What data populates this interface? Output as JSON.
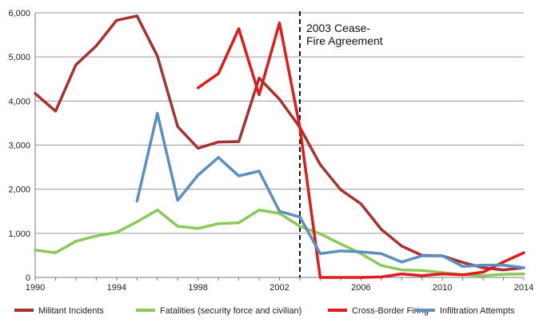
{
  "chart_data": {
    "type": "line",
    "title": "",
    "xlabel": "",
    "ylabel": "",
    "xlim": [
      1990,
      2014
    ],
    "ylim": [
      0,
      6000
    ],
    "grid": "horizontal",
    "legend_position": "bottom",
    "x_ticks": [
      1990,
      1994,
      1998,
      2002,
      2006,
      2010,
      2014
    ],
    "y_ticks": [
      {
        "value": 0,
        "label": "0"
      },
      {
        "value": 1000,
        "label": "1,000"
      },
      {
        "value": 2000,
        "label": "2,000"
      },
      {
        "value": 3000,
        "label": "3,000"
      },
      {
        "value": 4000,
        "label": "4,000"
      },
      {
        "value": 5000,
        "label": "5,000"
      },
      {
        "value": 6000,
        "label": "6,000"
      }
    ],
    "annotation": {
      "x": 2003,
      "line1": "2003 Cease-",
      "line2": "Fire Agreement"
    },
    "series": [
      {
        "name": "Militant Incidents",
        "color": "#a83232",
        "points": [
          [
            1990,
            4170
          ],
          [
            1991,
            3770
          ],
          [
            1992,
            4820
          ],
          [
            1993,
            5250
          ],
          [
            1994,
            5830
          ],
          [
            1995,
            5930
          ],
          [
            1996,
            5020
          ],
          [
            1997,
            3420
          ],
          [
            1998,
            2930
          ],
          [
            1999,
            3070
          ],
          [
            2000,
            3080
          ],
          [
            2001,
            4520
          ],
          [
            2002,
            4040
          ],
          [
            2003,
            3400
          ],
          [
            2004,
            2560
          ],
          [
            2005,
            1990
          ],
          [
            2006,
            1670
          ],
          [
            2007,
            1090
          ],
          [
            2008,
            710
          ],
          [
            2009,
            500
          ],
          [
            2010,
            490
          ],
          [
            2011,
            340
          ],
          [
            2012,
            220
          ],
          [
            2013,
            170
          ],
          [
            2014,
            220
          ]
        ]
      },
      {
        "name": "Fatalities (security force and civilian)",
        "color": "#8cc85a",
        "points": [
          [
            1990,
            620
          ],
          [
            1991,
            560
          ],
          [
            1992,
            820
          ],
          [
            1993,
            940
          ],
          [
            1994,
            1020
          ],
          [
            1995,
            1260
          ],
          [
            1996,
            1530
          ],
          [
            1997,
            1160
          ],
          [
            1998,
            1110
          ],
          [
            1999,
            1220
          ],
          [
            2000,
            1240
          ],
          [
            2001,
            1530
          ],
          [
            2002,
            1450
          ],
          [
            2003,
            1160
          ],
          [
            2004,
            990
          ],
          [
            2005,
            760
          ],
          [
            2006,
            540
          ],
          [
            2007,
            270
          ],
          [
            2008,
            170
          ],
          [
            2009,
            160
          ],
          [
            2010,
            110
          ],
          [
            2011,
            60
          ],
          [
            2012,
            40
          ],
          [
            2013,
            70
          ],
          [
            2014,
            80
          ]
        ]
      },
      {
        "name": "Cross-Border Firing",
        "color": "#e01b1b",
        "points": [
          [
            1998,
            4300
          ],
          [
            1999,
            4620
          ],
          [
            2000,
            5640
          ],
          [
            2001,
            4140
          ],
          [
            2002,
            5770
          ],
          [
            2003,
            3400
          ],
          [
            2004,
            0
          ],
          [
            2005,
            0
          ],
          [
            2006,
            0
          ],
          [
            2007,
            10
          ],
          [
            2008,
            80
          ],
          [
            2009,
            40
          ],
          [
            2010,
            80
          ],
          [
            2011,
            60
          ],
          [
            2012,
            120
          ],
          [
            2013,
            350
          ],
          [
            2014,
            560
          ]
        ]
      },
      {
        "name": "Infiltration Attempts",
        "color": "#5b8fc1",
        "points": [
          [
            1995,
            1730
          ],
          [
            1996,
            3720
          ],
          [
            1997,
            1750
          ],
          [
            1998,
            2320
          ],
          [
            1999,
            2720
          ],
          [
            2000,
            2300
          ],
          [
            2001,
            2410
          ],
          [
            2002,
            1500
          ],
          [
            2003,
            1370
          ],
          [
            2004,
            540
          ],
          [
            2005,
            600
          ],
          [
            2006,
            580
          ],
          [
            2007,
            540
          ],
          [
            2008,
            350
          ],
          [
            2009,
            490
          ],
          [
            2010,
            490
          ],
          [
            2011,
            250
          ],
          [
            2012,
            280
          ],
          [
            2013,
            280
          ],
          [
            2014,
            220
          ]
        ]
      }
    ]
  }
}
